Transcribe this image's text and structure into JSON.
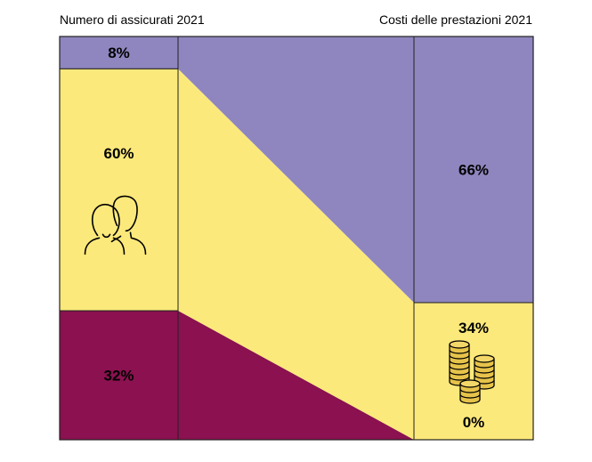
{
  "chart_data": {
    "type": "bar",
    "chart_kind": "flow-stacked-100%",
    "categories": [
      "Numero di assicurati 2021",
      "Costi delle prestazioni 2021"
    ],
    "series": [
      {
        "values": [
          32,
          0
        ],
        "labels": [
          "32%",
          "0%"
        ],
        "color": "#8b1150"
      },
      {
        "values": [
          60,
          34
        ],
        "labels": [
          "60%",
          "34%"
        ],
        "color": "#fce97b",
        "icons": [
          "people-icon",
          "coins-icon"
        ]
      },
      {
        "values": [
          8,
          66
        ],
        "labels": [
          "8%",
          "66%"
        ],
        "color": "#8f86bf"
      }
    ],
    "ylim": [
      0,
      100
    ],
    "grid": false,
    "legend": "none"
  }
}
